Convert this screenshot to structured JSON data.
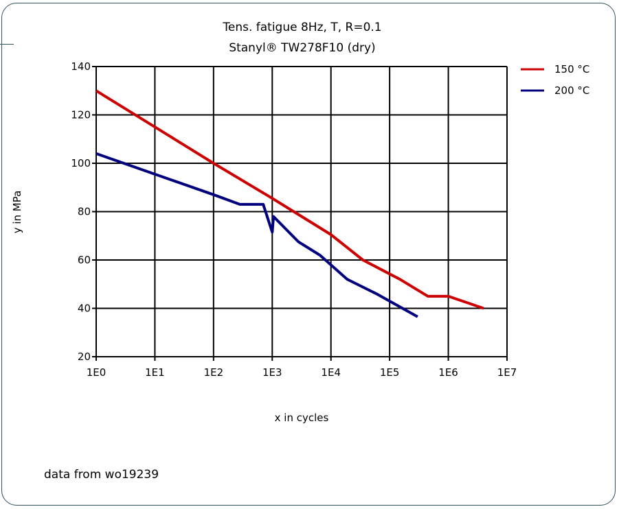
{
  "chart_data": {
    "type": "line",
    "title": "Tens. fatigue 8Hz, T, R=0.1",
    "subtitle": "Stanyl® TW278F10 (dry)",
    "xlabel": "x in cycles",
    "ylabel": "y in MPa",
    "xscale": "log",
    "xlim": [
      1,
      10000000
    ],
    "ylim": [
      20,
      140
    ],
    "x_ticks": [
      1,
      10,
      100,
      1000,
      10000,
      100000,
      1000000,
      10000000
    ],
    "x_tick_labels": [
      "1E0",
      "1E1",
      "1E2",
      "1E3",
      "1E4",
      "1E5",
      "1E6",
      "1E7"
    ],
    "y_ticks": [
      20,
      40,
      60,
      80,
      100,
      120,
      140
    ],
    "y_tick_labels": [
      "20",
      "40",
      "60",
      "80",
      "100",
      "120",
      "140"
    ],
    "grid": true,
    "legend_position": "top-right",
    "series": [
      {
        "name": "150 °C",
        "color": "#cc0000",
        "points": [
          [
            1,
            130
          ],
          [
            10,
            115
          ],
          [
            100,
            100
          ],
          [
            1000,
            85.5
          ],
          [
            10000,
            70.5
          ],
          [
            35000,
            60
          ],
          [
            150000,
            52
          ],
          [
            450000,
            45
          ],
          [
            1000000,
            45
          ],
          [
            4000000,
            40
          ]
        ]
      },
      {
        "name": "200 °C",
        "color": "#00007f",
        "points": [
          [
            1,
            104
          ],
          [
            10,
            95.5
          ],
          [
            100,
            87
          ],
          [
            280,
            83
          ],
          [
            700,
            83
          ],
          [
            1000,
            71.5
          ],
          [
            1050,
            78
          ],
          [
            2800,
            67.5
          ],
          [
            6500,
            62
          ],
          [
            10000,
            58
          ],
          [
            19000,
            52
          ],
          [
            60000,
            46
          ],
          [
            300000,
            36.5
          ]
        ]
      }
    ]
  },
  "note": "data from wo19239"
}
